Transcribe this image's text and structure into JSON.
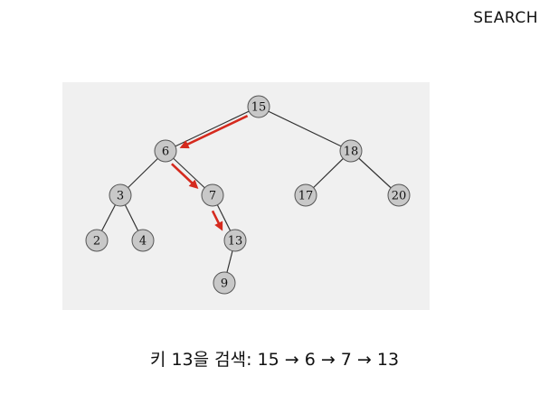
{
  "heading": "SEARCH",
  "caption": "키 13을 검색: 15 → 6 → 7 → 13",
  "colors": {
    "node_fill": "#c8c8c8",
    "node_stroke": "#555555",
    "edge": "#333333",
    "search_arrow": "#d52a1e",
    "panel_bg": "#f0f0f0"
  },
  "tree": {
    "nodes": [
      {
        "id": "n15",
        "label": "15"
      },
      {
        "id": "n6",
        "label": "6"
      },
      {
        "id": "n18",
        "label": "18"
      },
      {
        "id": "n3",
        "label": "3"
      },
      {
        "id": "n7",
        "label": "7"
      },
      {
        "id": "n17",
        "label": "17"
      },
      {
        "id": "n20",
        "label": "20"
      },
      {
        "id": "n2",
        "label": "2"
      },
      {
        "id": "n4",
        "label": "4"
      },
      {
        "id": "n13",
        "label": "13"
      },
      {
        "id": "n9",
        "label": "9"
      }
    ],
    "edges": [
      [
        "n15",
        "n6"
      ],
      [
        "n15",
        "n18"
      ],
      [
        "n6",
        "n3"
      ],
      [
        "n6",
        "n7"
      ],
      [
        "n18",
        "n17"
      ],
      [
        "n18",
        "n20"
      ],
      [
        "n3",
        "n2"
      ],
      [
        "n3",
        "n4"
      ],
      [
        "n7",
        "n13"
      ],
      [
        "n13",
        "n9"
      ]
    ],
    "search_path": [
      "n15",
      "n6",
      "n7",
      "n13"
    ]
  }
}
